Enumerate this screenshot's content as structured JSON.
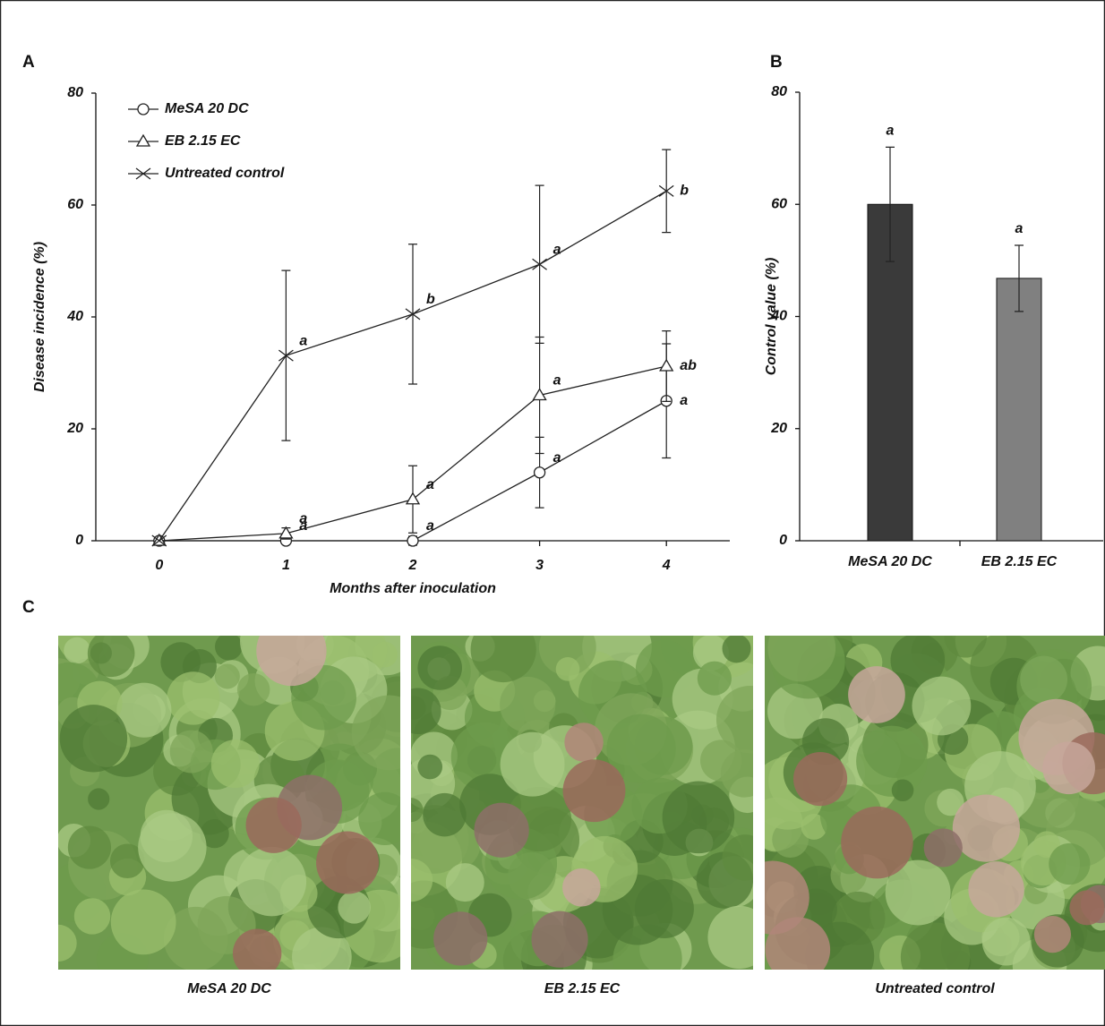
{
  "chart_data": [
    {
      "type": "line",
      "panel_label": "A",
      "x_label": "Months after inoculation",
      "y_label": "Disease incidence (%)",
      "x": [
        0,
        1,
        2,
        3,
        4
      ],
      "xlim": [
        -0.5,
        4.5
      ],
      "xticks": [
        0,
        1,
        2,
        3,
        4
      ],
      "ylim": [
        0,
        80
      ],
      "yticks": [
        0,
        20,
        40,
        60,
        80
      ],
      "legend": "top-left",
      "series": [
        {
          "name": "MeSA 20 DC",
          "marker": "circle",
          "color": "#222222",
          "values": [
            0,
            0,
            0,
            12.2,
            25
          ],
          "errors": [
            0,
            0,
            0.8,
            6.3,
            10.2
          ],
          "letters": [
            null,
            "a",
            "a",
            "a",
            "a"
          ]
        },
        {
          "name": "EB 2.15 EC",
          "marker": "triangle",
          "color": "#222222",
          "values": [
            0,
            1.3,
            7.4,
            26,
            31.2
          ],
          "errors": [
            0,
            1,
            6,
            10.4,
            6.3
          ],
          "letters": [
            null,
            "a",
            "a",
            "a",
            "ab"
          ]
        },
        {
          "name": "Untreated control",
          "marker": "x",
          "color": "#222222",
          "values": [
            0,
            33.1,
            40.5,
            49.4,
            62.5
          ],
          "errors": [
            0,
            15.2,
            12.5,
            14.1,
            7.4
          ],
          "letters": [
            null,
            "a",
            "b",
            "a",
            "b"
          ]
        }
      ]
    },
    {
      "type": "bar",
      "panel_label": "B",
      "y_label": "Control value (%)",
      "categories": [
        "MeSA 20 DC",
        "EB 2.15 EC"
      ],
      "values": [
        60,
        46.8
      ],
      "errors": [
        10.2,
        5.9
      ],
      "letters": [
        "a",
        "a"
      ],
      "colors": [
        "#3a3a3a",
        "#808080"
      ],
      "ylim": [
        0,
        80
      ],
      "yticks": [
        0,
        20,
        40,
        60,
        80
      ]
    }
  ],
  "photos": {
    "panel_label": "C",
    "captions": [
      "MeSA 20 DC",
      "EB 2.15 EC",
      "Untreated control"
    ]
  }
}
